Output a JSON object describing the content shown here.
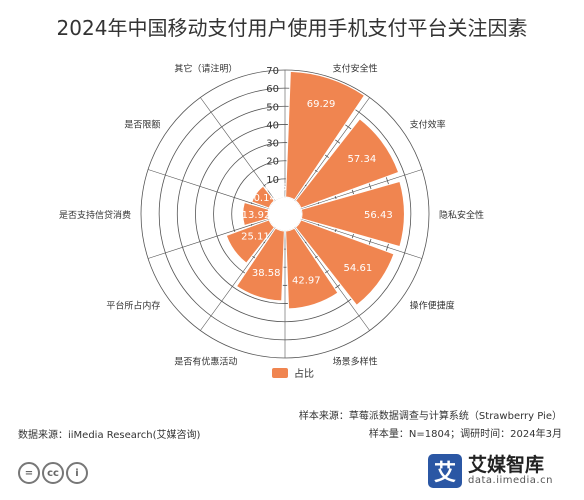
{
  "title": "2024年中国移动支付用户使用手机支付平台关注因素",
  "colors": {
    "bar": "#f08550",
    "grid": "#555555",
    "text": "#333333",
    "bar_label": "#ffffff"
  },
  "chart_data": {
    "type": "bar",
    "polar": true,
    "categories": [
      "支付安全性",
      "支付效率",
      "隐私安全性",
      "操作便捷度",
      "场景多样性",
      "是否有优惠活动",
      "平台所占内存",
      "是否支持信贷消费",
      "是否限额",
      "其它（请注明）"
    ],
    "series": [
      {
        "name": "占比",
        "values": [
          69.29,
          57.34,
          56.43,
          54.61,
          42.97,
          38.58,
          25.11,
          13.92,
          10.14,
          0.15
        ]
      }
    ],
    "rlim": [
      0,
      70
    ],
    "r_ticks": [
      0,
      10,
      20,
      30,
      40,
      50,
      60,
      70
    ],
    "unit": "%",
    "legend_position": "bottom"
  },
  "legend": {
    "label": "占比"
  },
  "footer": {
    "source": "数据来源：iiMedia Research(艾媒咨询)",
    "sample_source": "样本来源：草莓派数据调查与计算系统（Strawberry Pie）",
    "sample_info": "样本量：N=1804；调研时间：2024年3月"
  },
  "license": [
    "=",
    "cc",
    "i"
  ],
  "logo": {
    "mark": "艾",
    "name": "艾媒智库",
    "url": "data.iimedia.cn"
  }
}
